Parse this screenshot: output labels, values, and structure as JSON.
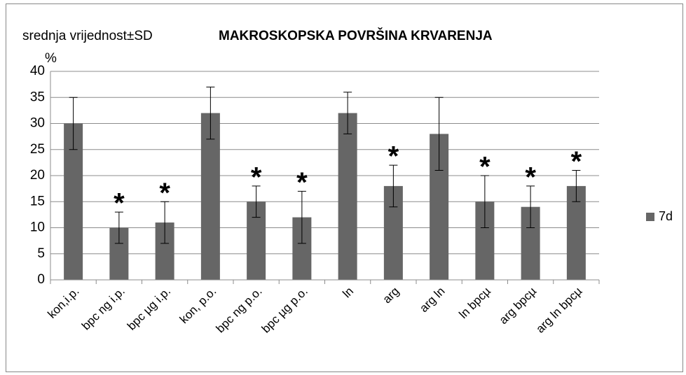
{
  "chart_data": {
    "type": "bar",
    "title": "MAKROSKOPSKA POVRŠINA KRVARENJA",
    "y_label": "srednja vrijednost±SD",
    "y_unit": "%",
    "categories": [
      "kon,i.p.",
      "bpc ng i.p.",
      "bpc µg i.p.",
      "kon, p.o.",
      "bpc ng p.o.",
      "bpc µg p.o.",
      "ln",
      "arg",
      "arg ln",
      "ln bpcµ",
      "arg bpcµ",
      "arg ln bpcµ"
    ],
    "series": [
      {
        "name": "7d",
        "color": "#666666",
        "values": [
          30,
          10,
          11,
          32,
          15,
          12,
          32,
          18,
          28,
          15,
          14,
          18
        ],
        "errors": [
          5,
          3,
          4,
          5,
          3,
          5,
          4,
          4,
          7,
          5,
          4,
          3
        ]
      }
    ],
    "significance": [
      null,
      "*",
      "*",
      null,
      "*",
      "*",
      null,
      "*",
      null,
      "*",
      "*",
      "*"
    ],
    "ylim": [
      0,
      40
    ],
    "yticks": [
      0,
      5,
      10,
      15,
      20,
      25,
      30,
      35,
      40
    ],
    "grid": true,
    "legend": "right"
  }
}
